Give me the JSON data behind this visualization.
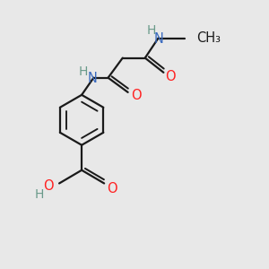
{
  "bg_color": "#e8e8e8",
  "bond_color": "#1a1a1a",
  "N_color": "#3a6abf",
  "O_color": "#ff2020",
  "H_color": "#6a9a8a",
  "line_width": 1.6,
  "font_size": 10.5,
  "xlim": [
    0,
    10
  ],
  "ylim": [
    0,
    10
  ]
}
